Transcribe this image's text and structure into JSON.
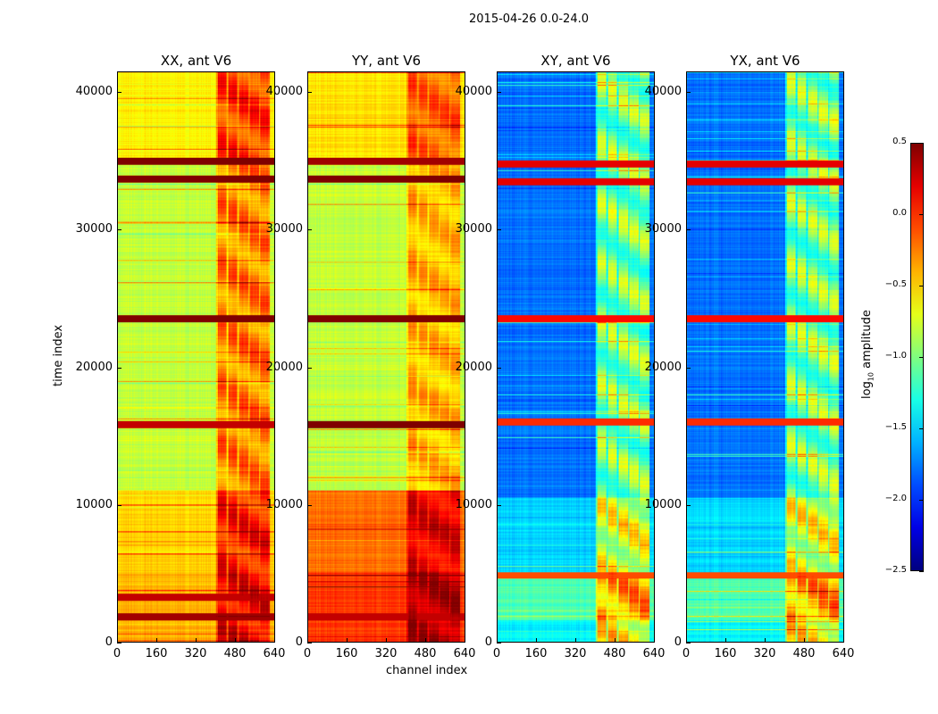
{
  "chart_data": {
    "type": "heatmap",
    "title": "2015-04-26 0.0-24.0",
    "xlabel": "channel index",
    "ylabel": "time index",
    "xlim": [
      0,
      640
    ],
    "ylim": [
      0,
      41500
    ],
    "xticks": [
      0,
      160,
      320,
      480,
      640
    ],
    "yticks": [
      0,
      10000,
      20000,
      30000,
      40000
    ],
    "colorbar": {
      "label": "log10 amplitude",
      "label_main": "log",
      "label_sub": "10",
      "label_rest": " amplitude",
      "range": [
        -2.5,
        0.5
      ],
      "ticks": [
        "0.5",
        "0.0",
        "−0.5",
        "−1.0",
        "−1.5",
        "−2.0",
        "−2.5"
      ],
      "tick_values": [
        0.5,
        0,
        -0.5,
        -1,
        -1.5,
        -2,
        -2.5
      ],
      "colormap": "jet"
    },
    "panels": [
      {
        "title": "XX, ant V6",
        "rfi_channels": [
          400,
          620
        ],
        "rfi_boost": 0.7,
        "levels": [
          [
            0,
            5000,
            -0.4
          ],
          [
            5000,
            11000,
            -0.5
          ],
          [
            11000,
            35000,
            -0.8
          ],
          [
            35000,
            41500,
            -0.6
          ]
        ],
        "bright_bands": [
          [
            1800,
            0.4
          ],
          [
            3200,
            0.3
          ],
          [
            15800,
            0.3
          ],
          [
            23500,
            0.5
          ],
          [
            33700,
            0.5
          ],
          [
            35000,
            0.5
          ]
        ]
      },
      {
        "title": "YY, ant V6",
        "rfi_channels": [
          400,
          620
        ],
        "rfi_boost": 0.5,
        "levels": [
          [
            0,
            5000,
            -0.05
          ],
          [
            5000,
            11000,
            -0.2
          ],
          [
            11000,
            35000,
            -0.8
          ],
          [
            35000,
            41500,
            -0.55
          ]
        ],
        "bright_bands": [
          [
            1800,
            0.3
          ],
          [
            15800,
            0.5
          ],
          [
            23500,
            0.5
          ],
          [
            33700,
            0.5
          ],
          [
            35000,
            0.4
          ]
        ]
      },
      {
        "title": "XY, ant V6",
        "rfi_channels": [
          400,
          620
        ],
        "rfi_boost": 1.0,
        "levels": [
          [
            0,
            1500,
            -1.4
          ],
          [
            1500,
            5000,
            -1.15
          ],
          [
            5000,
            10500,
            -1.5
          ],
          [
            10500,
            41500,
            -1.8
          ]
        ],
        "bright_bands": [
          [
            4800,
            -0.1
          ],
          [
            16000,
            0.0
          ],
          [
            23500,
            0.1
          ],
          [
            33500,
            0.2
          ],
          [
            34800,
            0.2
          ]
        ]
      },
      {
        "title": "YX, ant V6",
        "rfi_channels": [
          400,
          620
        ],
        "rfi_boost": 1.0,
        "levels": [
          [
            0,
            1500,
            -1.4
          ],
          [
            1500,
            5000,
            -1.15
          ],
          [
            5000,
            10500,
            -1.5
          ],
          [
            10500,
            41500,
            -1.8
          ]
        ],
        "bright_bands": [
          [
            4800,
            -0.1
          ],
          [
            16000,
            0.0
          ],
          [
            23500,
            0.1
          ],
          [
            33500,
            0.2
          ],
          [
            34800,
            0.2
          ]
        ]
      }
    ]
  }
}
